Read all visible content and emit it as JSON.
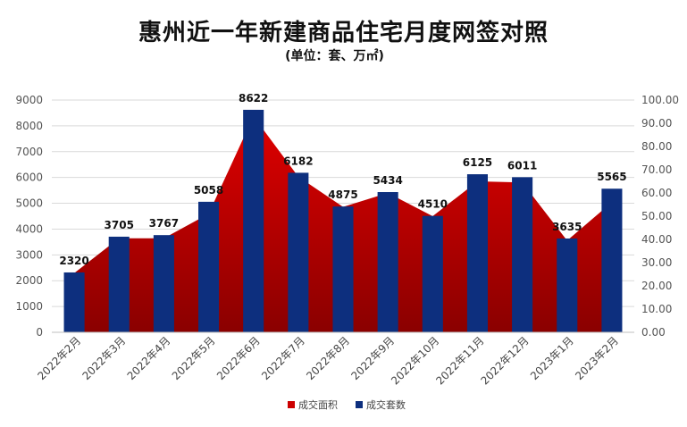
{
  "chart_data": {
    "type": "bar",
    "title": "惠州近一年新建商品住宅月度网签对照",
    "subtitle": "(单位：套、万㎡)",
    "categories": [
      "2022年2月",
      "2022年3月",
      "2022年4月",
      "2022年5月",
      "2022年6月",
      "2022年7月",
      "2022年8月",
      "2022年9月",
      "2022年10月",
      "2022年11月",
      "2022年12月",
      "2023年1月",
      "2023年2月"
    ],
    "series": [
      {
        "name": "成交面积",
        "type": "area",
        "axis": "right",
        "color": "#cc0000",
        "values": [
          25.5,
          40.5,
          40.5,
          51,
          93,
          67,
          54,
          60,
          50,
          65,
          64.5,
          39.5,
          56
        ]
      },
      {
        "name": "成交套数",
        "type": "bar",
        "axis": "left",
        "color": "#0d2f7e",
        "values": [
          2320,
          3705,
          3767,
          5058,
          8622,
          6182,
          4875,
          5434,
          4510,
          6125,
          6011,
          3635,
          5565
        ]
      }
    ],
    "y_left": {
      "min": 0,
      "max": 9000,
      "step": 1000,
      "ticks": [
        "0",
        "1000",
        "2000",
        "3000",
        "4000",
        "5000",
        "6000",
        "7000",
        "8000",
        "9000"
      ]
    },
    "y_right": {
      "min": 0,
      "max": 100,
      "step": 10,
      "ticks": [
        "0.00",
        "10.00",
        "20.00",
        "30.00",
        "40.00",
        "50.00",
        "60.00",
        "70.00",
        "80.00",
        "90.00",
        "100.00"
      ]
    },
    "grid": true,
    "legend_position": "bottom"
  }
}
